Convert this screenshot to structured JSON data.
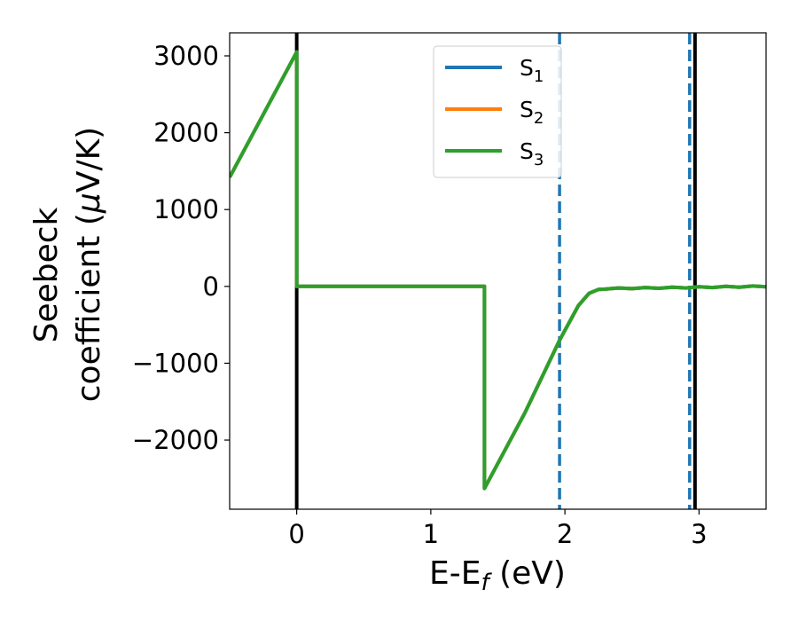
{
  "chart_data": {
    "type": "line",
    "xlabel": "E-E",
    "xlabel_sub": "f",
    "xlabel_unit": " (eV)",
    "ylabel_line1": "Seebeck",
    "ylabel_line2": "coefficient  (",
    "ylabel_mu": "μ",
    "ylabel_unit": "V/K)",
    "xlim": [
      -0.5,
      3.5
    ],
    "ylim": [
      -2900,
      3300
    ],
    "xticks": [
      0,
      1,
      2,
      3
    ],
    "xtick_labels": [
      "0",
      "1",
      "2",
      "3"
    ],
    "yticks": [
      -2000,
      -1000,
      0,
      1000,
      2000,
      3000
    ],
    "ytick_labels": [
      "−2000",
      "−1000",
      "0",
      "1000",
      "2000",
      "3000"
    ],
    "grid": false,
    "legend_position": "top-center",
    "series": [
      {
        "name": "S",
        "name_sub": "1",
        "color": "#1f77b4",
        "x": [
          -0.5,
          0.0,
          0.0,
          1.4,
          1.4,
          1.7,
          1.96,
          2.1,
          2.18,
          2.25,
          2.3,
          2.4,
          2.5,
          2.6,
          2.7,
          2.8,
          2.9,
          3.0,
          3.1,
          3.2,
          3.3,
          3.4,
          3.5
        ],
        "values": [
          1420,
          3050,
          0,
          0,
          -2630,
          -1650,
          -700,
          -250,
          -90,
          -40,
          -35,
          -20,
          -30,
          -15,
          -25,
          -10,
          -20,
          -5,
          -15,
          0,
          -10,
          5,
          -5
        ]
      },
      {
        "name": "S",
        "name_sub": "2",
        "color": "#ff7f0e",
        "x": [
          -0.5,
          0.0,
          0.0,
          1.4,
          1.4,
          1.7,
          1.96,
          2.1,
          2.18,
          2.25,
          2.3,
          2.4,
          2.5,
          2.6,
          2.7,
          2.8,
          2.9,
          3.0,
          3.1,
          3.2,
          3.3,
          3.4,
          3.5
        ],
        "values": [
          1420,
          3050,
          0,
          0,
          -2630,
          -1650,
          -700,
          -250,
          -90,
          -40,
          -35,
          -20,
          -30,
          -15,
          -25,
          -10,
          -20,
          -5,
          -15,
          0,
          -10,
          5,
          -5
        ]
      },
      {
        "name": "S",
        "name_sub": "3",
        "color": "#2ca02c",
        "x": [
          -0.5,
          0.0,
          0.0,
          1.4,
          1.4,
          1.7,
          1.96,
          2.1,
          2.18,
          2.25,
          2.3,
          2.4,
          2.5,
          2.6,
          2.7,
          2.8,
          2.9,
          3.0,
          3.1,
          3.2,
          3.3,
          3.4,
          3.5
        ],
        "values": [
          1420,
          3050,
          0,
          0,
          -2630,
          -1650,
          -700,
          -250,
          -90,
          -40,
          -35,
          -20,
          -30,
          -15,
          -25,
          -10,
          -20,
          -5,
          -15,
          0,
          -10,
          5,
          -5
        ]
      }
    ],
    "vertical_lines": [
      {
        "x": 0.0,
        "color": "#000000",
        "style": "solid"
      },
      {
        "x": 2.97,
        "color": "#000000",
        "style": "solid"
      },
      {
        "x": 1.96,
        "color": "#1f77b4",
        "style": "dashed"
      },
      {
        "x": 2.93,
        "color": "#1f77b4",
        "style": "dashed"
      }
    ]
  }
}
